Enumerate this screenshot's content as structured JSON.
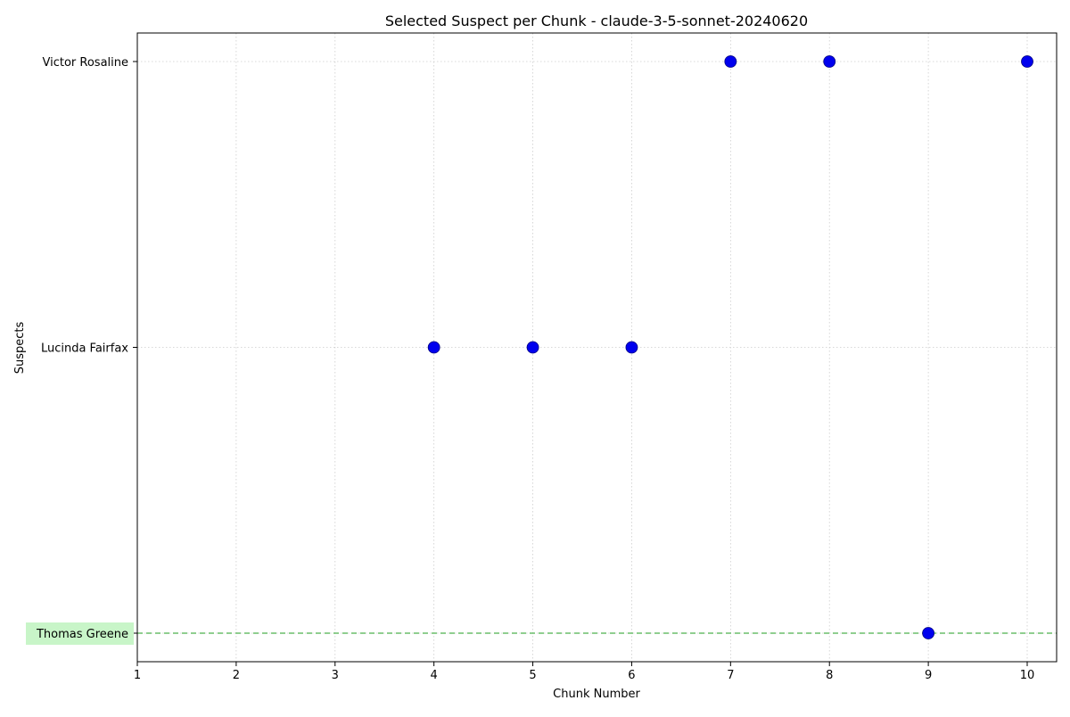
{
  "chart_data": {
    "type": "scatter",
    "title": "Selected Suspect per Chunk - claude-3-5-sonnet-20240620",
    "xlabel": "Chunk Number",
    "ylabel": "Suspects",
    "x_ticks": [
      1,
      2,
      3,
      4,
      5,
      6,
      7,
      8,
      9,
      10
    ],
    "xlim": [
      1,
      10.3
    ],
    "categories": [
      "Thomas Greene",
      "Lucinda Fairfax",
      "Victor Rosaline"
    ],
    "highlighted_category": "Thomas Greene",
    "reference_line": {
      "category": "Thomas Greene",
      "style": "dashed",
      "color": "#5cb85c"
    },
    "highlight_color": "#c8f5c8",
    "points": [
      {
        "x": 4,
        "y": "Lucinda Fairfax"
      },
      {
        "x": 5,
        "y": "Lucinda Fairfax"
      },
      {
        "x": 6,
        "y": "Lucinda Fairfax"
      },
      {
        "x": 7,
        "y": "Victor Rosaline"
      },
      {
        "x": 8,
        "y": "Victor Rosaline"
      },
      {
        "x": 9,
        "y": "Thomas Greene"
      },
      {
        "x": 10,
        "y": "Victor Rosaline"
      }
    ],
    "marker_color": "#0000ee",
    "grid": true,
    "grid_style": "dotted"
  }
}
